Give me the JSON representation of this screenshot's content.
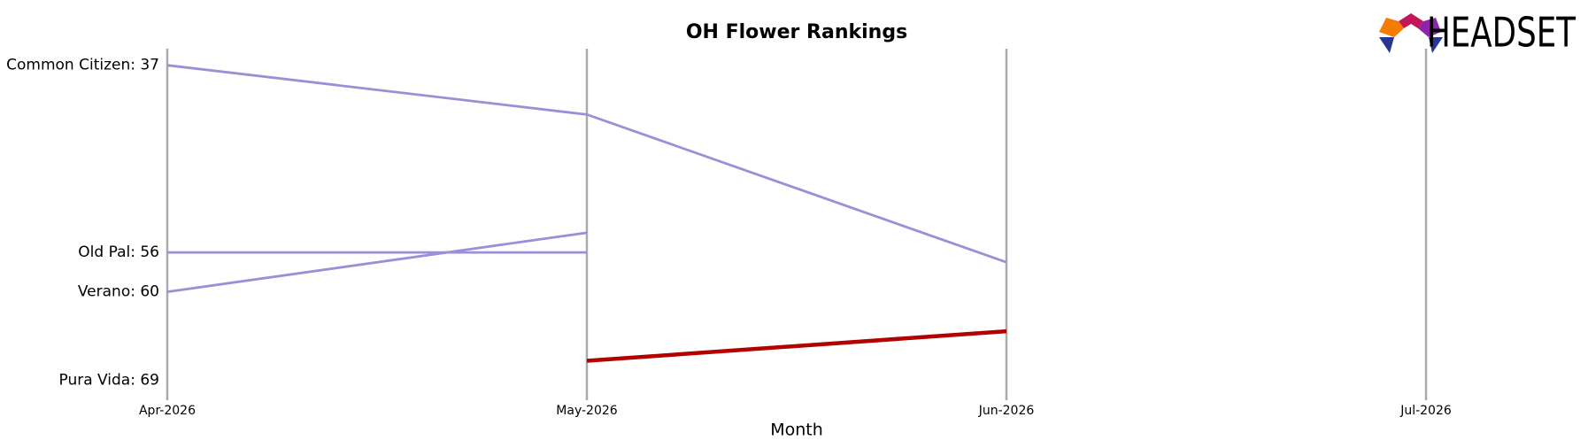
{
  "chart_data": {
    "type": "bump",
    "title": "OH Flower Rankings",
    "x_label": "Month",
    "logo": "HEADSET",
    "categories": [
      "Apr-2026",
      "May-2026",
      "Jun-2026",
      "Jul-2026"
    ],
    "ylim": [
      71,
      35.5
    ],
    "yticks": [
      {
        "value": 37,
        "label": "Common Citizen: 37"
      },
      {
        "value": 56,
        "label": "Old Pal: 56"
      },
      {
        "value": 60,
        "label": "Verano: 60"
      },
      {
        "value": 69,
        "label": "Pura Vida: 69"
      }
    ],
    "grid": true,
    "series": [
      {
        "name": "Common Citizen",
        "color": "#9b8fd8",
        "values": [
          37,
          42,
          57,
          null
        ]
      },
      {
        "name": "Old Pal",
        "color": "#9b8fd8",
        "values": [
          56,
          56,
          null,
          null
        ]
      },
      {
        "name": "Verano",
        "color": "#9b8fd8",
        "values": [
          60,
          54,
          null,
          null
        ]
      },
      {
        "name": "Pura Vida",
        "color": "#b30000",
        "values": [
          null,
          67,
          64,
          null
        ]
      }
    ]
  }
}
